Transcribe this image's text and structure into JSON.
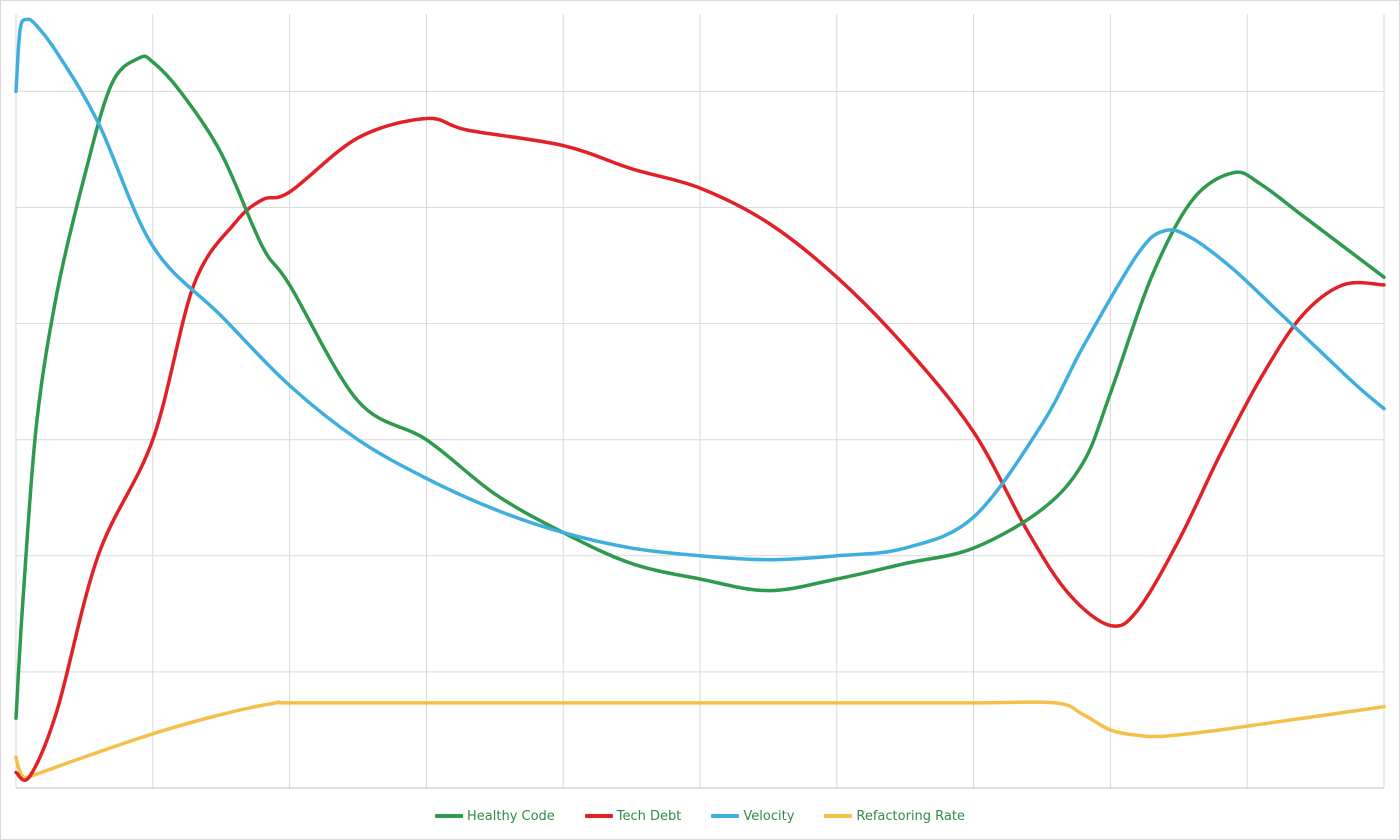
{
  "chart_data": {
    "type": "line",
    "title": "",
    "xlabel": "",
    "ylabel": "",
    "xlim": [
      0,
      100
    ],
    "ylim": [
      0,
      100
    ],
    "grid": true,
    "x_gridlines": [
      0,
      10,
      20,
      30,
      40,
      50,
      60,
      70,
      80,
      90,
      100
    ],
    "y_gridlines": [
      0,
      15,
      30,
      45,
      60,
      75,
      90
    ],
    "legend_position": "bottom",
    "series": [
      {
        "name": "Healthy Code",
        "color": "#2e9a4e",
        "points": [
          [
            0,
            9
          ],
          [
            0.5,
            24
          ],
          [
            1.5,
            47
          ],
          [
            3,
            64
          ],
          [
            5,
            79
          ],
          [
            7,
            91
          ],
          [
            9,
            94.3
          ],
          [
            10,
            93.8
          ],
          [
            12,
            90
          ],
          [
            15,
            82
          ],
          [
            18,
            70
          ],
          [
            20,
            65
          ],
          [
            25,
            50
          ],
          [
            30,
            45
          ],
          [
            35,
            38
          ],
          [
            40,
            33
          ],
          [
            45,
            29
          ],
          [
            50,
            27
          ],
          [
            55,
            25.5
          ],
          [
            60,
            27
          ],
          [
            65,
            29
          ],
          [
            70,
            31
          ],
          [
            75,
            36
          ],
          [
            78,
            42
          ],
          [
            80,
            51
          ],
          [
            83,
            66
          ],
          [
            86,
            76
          ],
          [
            89,
            79.5
          ],
          [
            91,
            78
          ],
          [
            94,
            74
          ],
          [
            97,
            70
          ],
          [
            100,
            66
          ]
        ]
      },
      {
        "name": "Tech Debt",
        "color": "#e02127",
        "points": [
          [
            0,
            2
          ],
          [
            1,
            1.5
          ],
          [
            3,
            10
          ],
          [
            6,
            30
          ],
          [
            10,
            45
          ],
          [
            13,
            65
          ],
          [
            16,
            73
          ],
          [
            18,
            76
          ],
          [
            20,
            77
          ],
          [
            25,
            84
          ],
          [
            30,
            86.5
          ],
          [
            33,
            85
          ],
          [
            40,
            83
          ],
          [
            45,
            80
          ],
          [
            50,
            77.5
          ],
          [
            55,
            73
          ],
          [
            60,
            66
          ],
          [
            65,
            57
          ],
          [
            70,
            46
          ],
          [
            74,
            33
          ],
          [
            77,
            25
          ],
          [
            80,
            21
          ],
          [
            82,
            23
          ],
          [
            85,
            32
          ],
          [
            88,
            43
          ],
          [
            91,
            53
          ],
          [
            94,
            61
          ],
          [
            97,
            65
          ],
          [
            100,
            65
          ]
        ]
      },
      {
        "name": "Velocity",
        "color": "#3eaede",
        "points": [
          [
            0,
            90
          ],
          [
            0.3,
            98
          ],
          [
            0.8,
            99.3
          ],
          [
            1.5,
            98.5
          ],
          [
            3,
            95
          ],
          [
            6,
            86
          ],
          [
            10,
            70
          ],
          [
            15,
            61
          ],
          [
            20,
            52
          ],
          [
            25,
            45
          ],
          [
            30,
            40
          ],
          [
            35,
            36
          ],
          [
            40,
            33
          ],
          [
            45,
            31
          ],
          [
            50,
            30
          ],
          [
            55,
            29.5
          ],
          [
            60,
            30
          ],
          [
            65,
            31
          ],
          [
            70,
            35
          ],
          [
            75,
            47
          ],
          [
            78,
            57
          ],
          [
            82,
            69
          ],
          [
            84,
            72
          ],
          [
            86,
            71
          ],
          [
            89,
            67
          ],
          [
            92,
            62
          ],
          [
            95,
            57
          ],
          [
            98,
            52
          ],
          [
            100,
            49
          ]
        ]
      },
      {
        "name": "Refactoring Rate",
        "color": "#f5c04a",
        "points": [
          [
            0,
            4
          ],
          [
            0.2,
            2.5
          ],
          [
            0.5,
            1.5
          ],
          [
            1,
            1.5
          ],
          [
            5,
            4
          ],
          [
            10,
            7
          ],
          [
            15,
            9.5
          ],
          [
            19,
            11
          ],
          [
            20,
            11
          ],
          [
            30,
            11
          ],
          [
            40,
            11
          ],
          [
            50,
            11
          ],
          [
            60,
            11
          ],
          [
            70,
            11
          ],
          [
            76,
            11
          ],
          [
            78,
            9.5
          ],
          [
            80,
            7.5
          ],
          [
            82,
            6.8
          ],
          [
            84,
            6.7
          ],
          [
            88,
            7.5
          ],
          [
            92,
            8.5
          ],
          [
            96,
            9.5
          ],
          [
            100,
            10.5
          ]
        ]
      }
    ]
  },
  "legend": [
    {
      "label": "Healthy Code",
      "color": "#2e9a4e"
    },
    {
      "label": "Tech Debt",
      "color": "#e02127"
    },
    {
      "label": "Velocity",
      "color": "#3eaede"
    },
    {
      "label": "Refactoring Rate",
      "color": "#f5c04a"
    }
  ]
}
